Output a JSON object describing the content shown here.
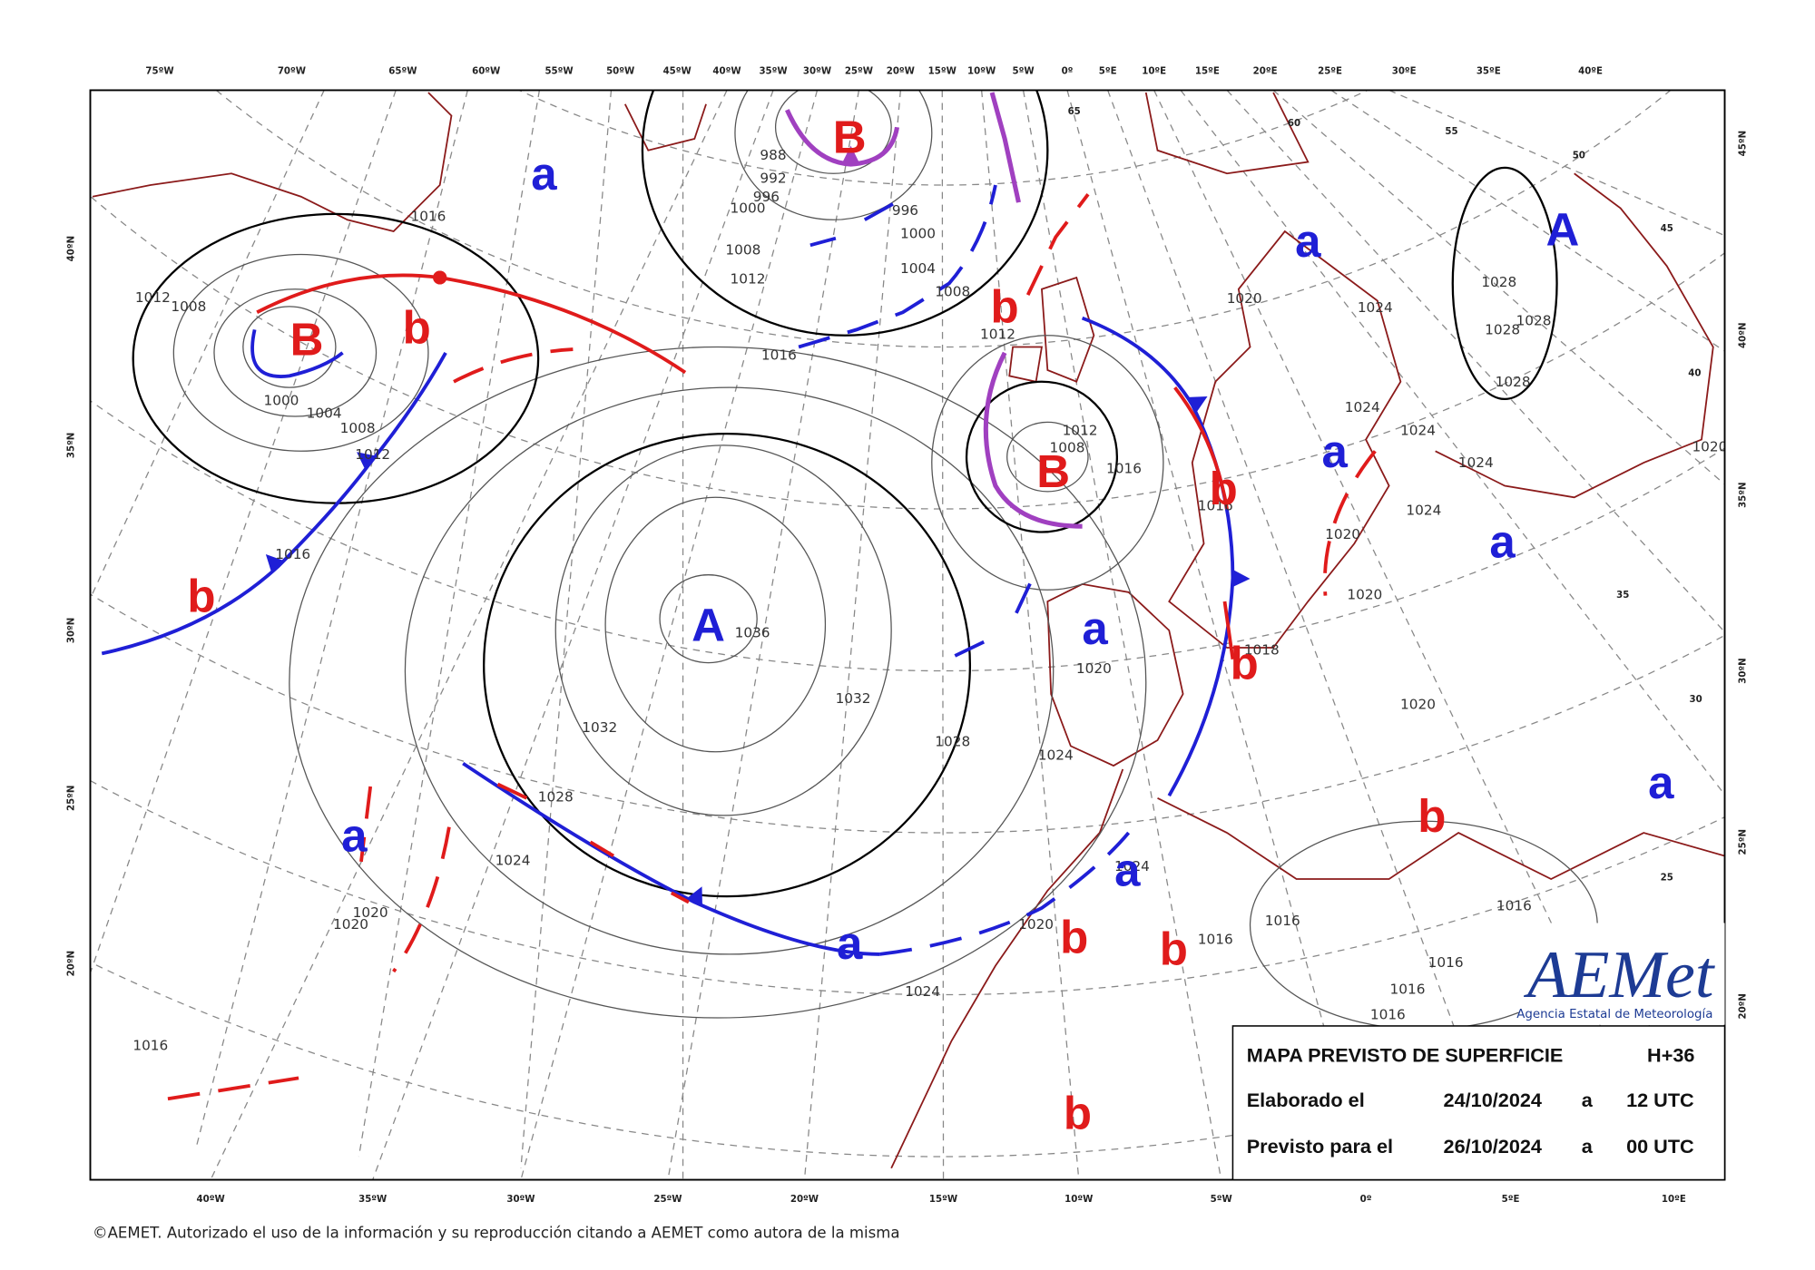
{
  "map": {
    "top_longitudes": [
      "75ºW",
      "70ºW",
      "65ºW",
      "60ºW",
      "55ºW",
      "50ºW",
      "45ºW",
      "40ºW",
      "35ºW",
      "30ºW",
      "25ºW",
      "20ºW",
      "15ºW",
      "10ºW",
      "5ºW",
      "0º",
      "5ºE",
      "10ºE",
      "15ºE",
      "20ºE",
      "25ºE",
      "30ºE",
      "35ºE",
      "40ºE"
    ],
    "bottom_longitudes": [
      "40ºW",
      "35ºW",
      "30ºW",
      "25ºW",
      "20ºW",
      "15ºW",
      "10ºW",
      "5ºW",
      "0º",
      "5ºE",
      "10ºE"
    ],
    "left_latitudes": [
      "40ºN",
      "35ºN",
      "30ºN",
      "25ºN",
      "20ºN"
    ],
    "right_latitudes": [
      "45ºN",
      "40ºN",
      "35ºN",
      "30ºN",
      "25ºN",
      "20ºN"
    ],
    "grid_labels": [
      65,
      60,
      55,
      50,
      45,
      40,
      35,
      30,
      25
    ],
    "isobar_labels": [
      988,
      992,
      996,
      1000,
      1008,
      1012,
      996,
      1000,
      1004,
      1008,
      1016,
      1012,
      1016,
      1012,
      1008,
      1000,
      1004,
      1008,
      1012,
      1016,
      1036,
      1032,
      1032,
      1028,
      1028,
      1024,
      1020,
      1020,
      1016,
      1024,
      1020,
      1016,
      1016,
      1012,
      1008,
      1020,
      1024,
      1028,
      1028,
      1028,
      1028,
      1024,
      1024,
      1024,
      1024,
      1020,
      1020,
      1020,
      1018,
      1020,
      1016,
      1016,
      1016,
      1016,
      1016,
      1016,
      1024,
      1020,
      1024
    ],
    "pressure_systems": [
      {
        "text": "a",
        "color": "#1f1fd6"
      },
      {
        "text": "B",
        "color": "#e01b1b"
      },
      {
        "text": "a",
        "color": "#1f1fd6"
      },
      {
        "text": "A",
        "color": "#1f1fd6"
      },
      {
        "text": "b",
        "color": "#e01b1b"
      },
      {
        "text": "B",
        "color": "#e01b1b"
      },
      {
        "text": "b",
        "color": "#e01b1b"
      },
      {
        "text": "a",
        "color": "#1f1fd6"
      },
      {
        "text": "B",
        "color": "#e01b1b"
      },
      {
        "text": "b",
        "color": "#e01b1b"
      },
      {
        "text": "a",
        "color": "#1f1fd6"
      },
      {
        "text": "b",
        "color": "#e01b1b"
      },
      {
        "text": "A",
        "color": "#1f1fd6"
      },
      {
        "text": "a",
        "color": "#1f1fd6"
      },
      {
        "text": "b",
        "color": "#e01b1b"
      },
      {
        "text": "a",
        "color": "#1f1fd6"
      },
      {
        "text": "b",
        "color": "#e01b1b"
      },
      {
        "text": "a",
        "color": "#1f1fd6"
      },
      {
        "text": "a",
        "color": "#1f1fd6"
      },
      {
        "text": "a",
        "color": "#1f1fd6"
      },
      {
        "text": "b",
        "color": "#e01b1b"
      },
      {
        "text": "b",
        "color": "#e01b1b"
      },
      {
        "text": "b",
        "color": "#e01b1b"
      }
    ]
  },
  "info_box": {
    "title": "MAPA PREVISTO DE SUPERFICIE",
    "lead_time": "H+36",
    "rows": [
      [
        "Elaborado el",
        "24/10/2024",
        "a",
        "12 UTC"
      ],
      [
        "Previsto para el",
        "26/10/2024",
        "a",
        "00 UTC"
      ]
    ]
  },
  "logo": {
    "name": "AEMet",
    "subtitle": "Agencia Estatal de Meteorología"
  },
  "footer": "©AEMET. Autorizado el uso de la información y su reproducción citando a AEMET como autora de la misma"
}
